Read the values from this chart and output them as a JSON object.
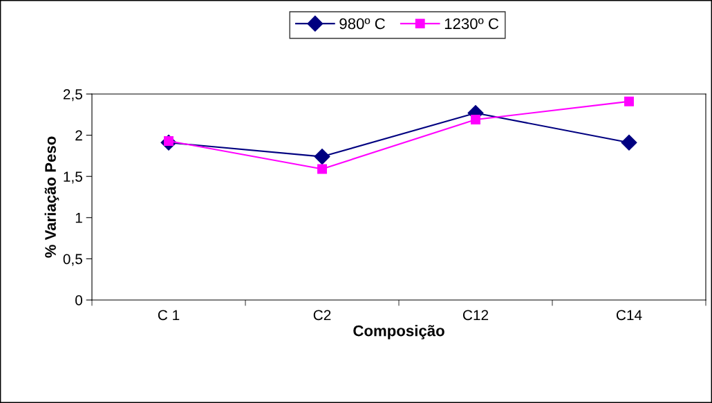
{
  "chart_data": {
    "type": "line",
    "xlabel": "Composição",
    "ylabel": "% Variação Peso",
    "categories": [
      "C 1",
      "C2",
      "C12",
      "C14"
    ],
    "series": [
      {
        "name": "980º C",
        "color": "#000080",
        "marker": "diamond",
        "values": [
          1.91,
          1.74,
          2.27,
          1.91
        ]
      },
      {
        "name": "1230º C",
        "color": "#ff00ff",
        "marker": "square",
        "values": [
          1.93,
          1.59,
          2.19,
          2.41
        ]
      }
    ],
    "ylim": [
      0,
      2.5
    ],
    "yticks": [
      0,
      {
        "value": 0.5,
        "label": "0,5"
      },
      1,
      {
        "value": 1.5,
        "label": "1,5"
      },
      2,
      {
        "value": 2.5,
        "label": "2,5"
      }
    ],
    "grid": false,
    "legend": "top",
    "line_style": "solid"
  }
}
